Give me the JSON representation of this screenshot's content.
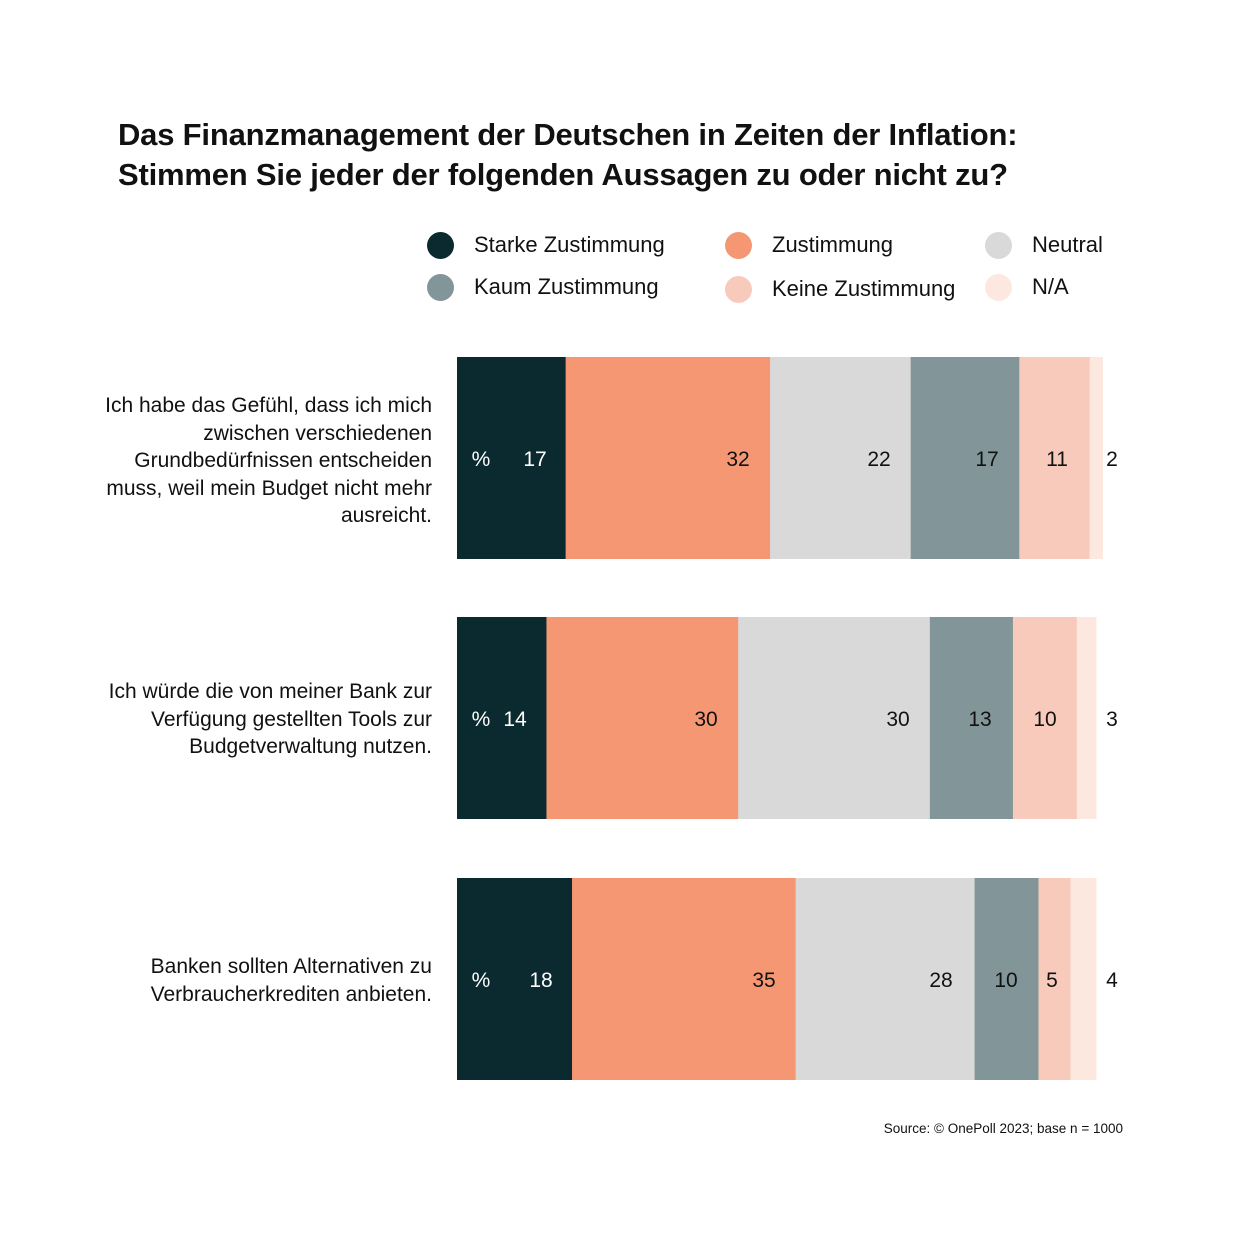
{
  "title_lines": [
    "Das Finanzmanagement der Deutschen in Zeiten der Inflation:",
    "Stimmen Sie jeder der folgenden Aussagen zu oder nicht zu?"
  ],
  "legend": [
    {
      "label": "Starke Zustimmung",
      "color": "#0a2a2f"
    },
    {
      "label": "Zustimmung",
      "color": "#f69774"
    },
    {
      "label": "Neutral",
      "color": "#d9d9d9"
    },
    {
      "label": "Kaum Zustimmung",
      "color": "#82969a"
    },
    {
      "label": "Keine Zustimmung",
      "color": "#f8cabb"
    },
    {
      "label": "N/A",
      "color": "#fde8e0"
    }
  ],
  "chart_data": {
    "type": "bar",
    "stacked": true,
    "orientation": "horizontal",
    "unit_label": "%",
    "categories": [
      "Ich habe das Gefühl, dass ich mich zwischen verschiedenen Grundbedürfnissen entscheiden muss, weil mein Budget nicht mehr ausreicht.",
      "Ich würde die von meiner Bank zur Verfügung gestellten Tools zur Budgetverwaltung nutzen.",
      "Banken sollten Alternativen zu Verbraucherkrediten anbieten."
    ],
    "series": [
      {
        "name": "Starke Zustimmung",
        "values": [
          17,
          14,
          18
        ]
      },
      {
        "name": "Zustimmung",
        "values": [
          32,
          30,
          35
        ]
      },
      {
        "name": "Neutral",
        "values": [
          22,
          30,
          28
        ]
      },
      {
        "name": "Kaum Zustimmung",
        "values": [
          17,
          13,
          10
        ]
      },
      {
        "name": "Keine Zustimmung",
        "values": [
          11,
          10,
          5
        ]
      },
      {
        "name": "N/A",
        "values": [
          2,
          3,
          4
        ]
      }
    ]
  },
  "source": "Source: © OnePoll 2023; base n = 1000"
}
